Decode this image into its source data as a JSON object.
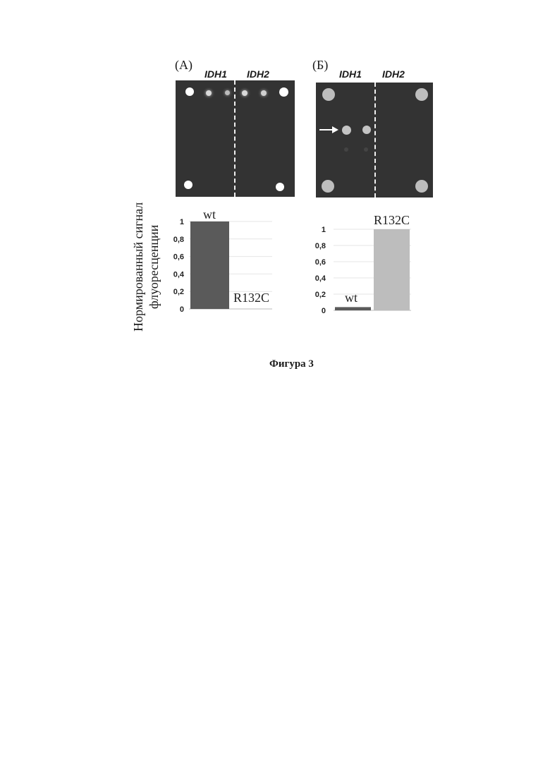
{
  "figure": {
    "caption": "Фигура 3",
    "panel_a": {
      "label": "(A)",
      "gene_left": "IDH1",
      "gene_right": "IDH2"
    },
    "panel_b": {
      "label": "(Б)",
      "gene_left": "IDH1",
      "gene_right": "IDH2"
    },
    "y_axis_label_line1": "Нормированный сигнал",
    "y_axis_label_line2": "флуоресценции"
  },
  "chart_data": [
    {
      "type": "bar",
      "categories": [
        "wt",
        "R132C"
      ],
      "values": [
        1,
        0
      ],
      "ylim": [
        0,
        1
      ],
      "yticks": [
        "1",
        "0,8",
        "0,6",
        "0,4",
        "0,2",
        "0"
      ],
      "colors": [
        "#5a5a5a",
        "#bdbdbd"
      ]
    },
    {
      "type": "bar",
      "categories": [
        "wt",
        "R132C"
      ],
      "values": [
        0.04,
        1
      ],
      "ylim": [
        0,
        1
      ],
      "yticks": [
        "1",
        "0,8",
        "0,6",
        "0,4",
        "0,2",
        "0"
      ],
      "colors": [
        "#5a5a5a",
        "#bdbdbd"
      ]
    }
  ]
}
